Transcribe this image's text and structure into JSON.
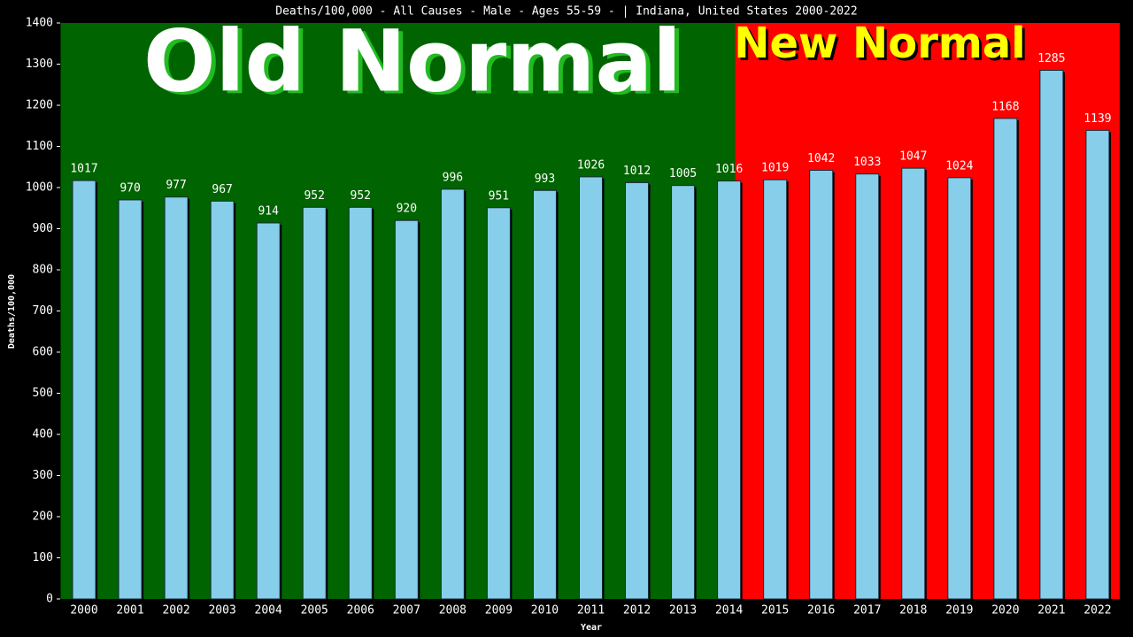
{
  "chart_data": {
    "type": "bar",
    "title": "Deaths/100,000 - All Causes - Male - Ages 55-59 -  | Indiana, United States 2000-2022",
    "x_label": "Year",
    "y_label": "Deaths/100,000",
    "annotations": [
      "Old Normal",
      "New Normal"
    ],
    "categories": [
      "2000",
      "2001",
      "2002",
      "2003",
      "2004",
      "2005",
      "2006",
      "2007",
      "2008",
      "2009",
      "2010",
      "2011",
      "2012",
      "2013",
      "2014",
      "2015",
      "2016",
      "2017",
      "2018",
      "2019",
      "2020",
      "2021",
      "2022"
    ],
    "values": [
      1017,
      970,
      977,
      967,
      914,
      952,
      952,
      920,
      996,
      951,
      993,
      1026,
      1012,
      1005,
      1016,
      1019,
      1042,
      1033,
      1047,
      1024,
      1168,
      1285,
      1139
    ],
    "color": "#87ceeb",
    "ylim": [
      0,
      1400
    ],
    "yticks": [
      0,
      100,
      200,
      300,
      400,
      500,
      600,
      700,
      800,
      900,
      1000,
      1100,
      1200,
      1300,
      1400
    ]
  }
}
